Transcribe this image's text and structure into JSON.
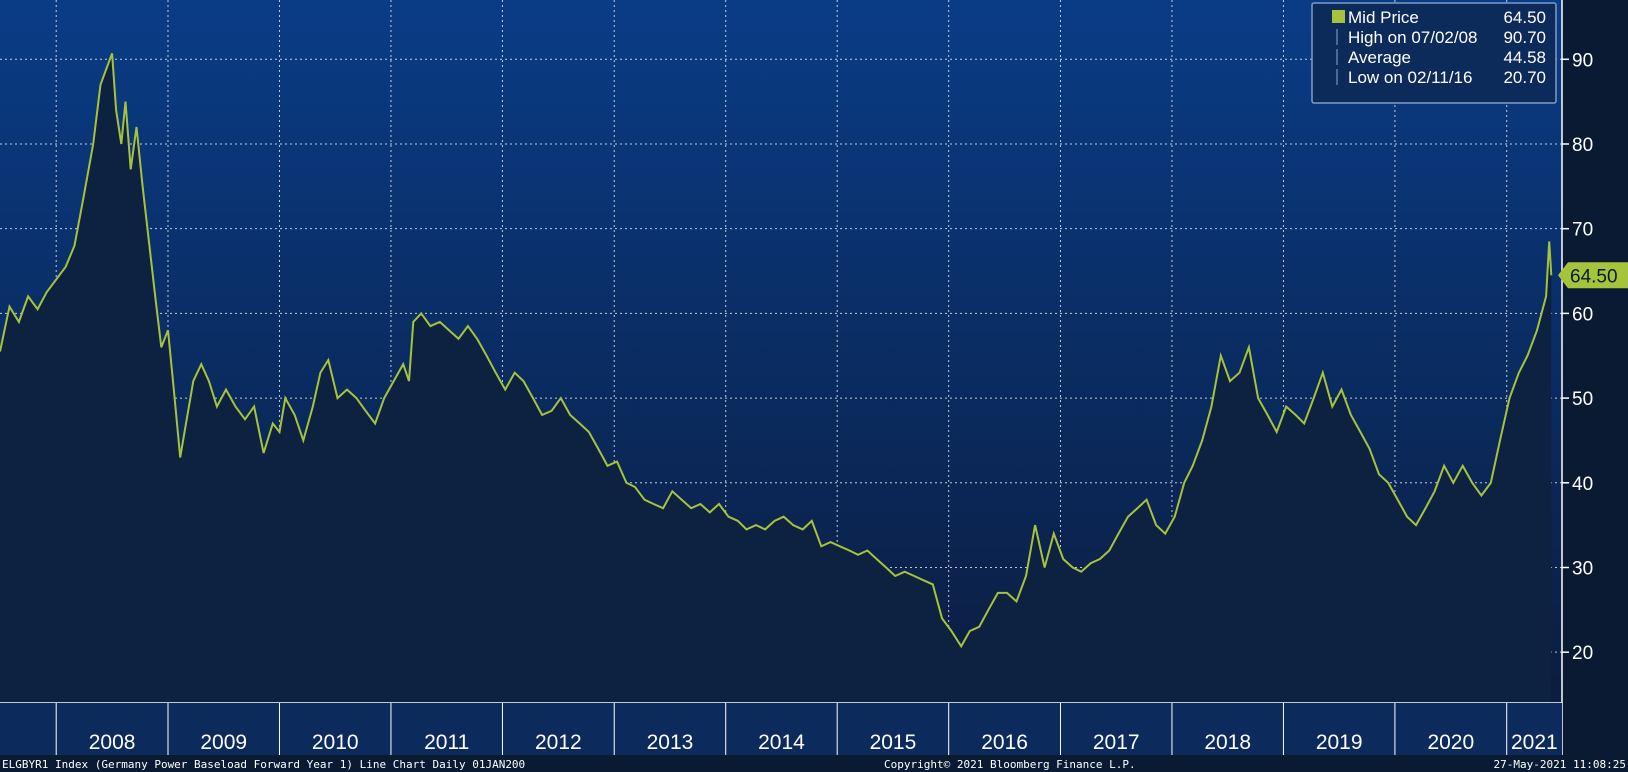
{
  "chart_data": {
    "type": "area",
    "series": [
      {
        "name": "Mid Price",
        "points": [
          [
            "2007-07-01",
            55.5
          ],
          [
            "2007-08-01",
            60.8
          ],
          [
            "2007-09-01",
            59.0
          ],
          [
            "2007-10-01",
            62.0
          ],
          [
            "2007-11-01",
            60.5
          ],
          [
            "2007-12-01",
            62.5
          ],
          [
            "2008-01-01",
            64.0
          ],
          [
            "2008-02-01",
            65.5
          ],
          [
            "2008-03-01",
            68.0
          ],
          [
            "2008-04-01",
            74.0
          ],
          [
            "2008-05-01",
            80.0
          ],
          [
            "2008-05-25",
            87.0
          ],
          [
            "2008-07-02",
            90.7
          ],
          [
            "2008-07-15",
            84.0
          ],
          [
            "2008-08-01",
            80.0
          ],
          [
            "2008-08-15",
            85.0
          ],
          [
            "2008-09-01",
            77.0
          ],
          [
            "2008-09-20",
            82.0
          ],
          [
            "2008-10-10",
            75.0
          ],
          [
            "2008-11-01",
            68.0
          ],
          [
            "2008-11-20",
            62.0
          ],
          [
            "2008-12-10",
            56.0
          ],
          [
            "2009-01-01",
            58.0
          ],
          [
            "2009-01-20",
            51.0
          ],
          [
            "2009-02-10",
            43.0
          ],
          [
            "2009-03-01",
            47.0
          ],
          [
            "2009-03-25",
            52.0
          ],
          [
            "2009-04-20",
            54.0
          ],
          [
            "2009-05-15",
            52.0
          ],
          [
            "2009-06-10",
            49.0
          ],
          [
            "2009-07-10",
            51.0
          ],
          [
            "2009-08-10",
            49.0
          ],
          [
            "2009-09-10",
            47.5
          ],
          [
            "2009-10-10",
            49.0
          ],
          [
            "2009-11-10",
            43.5
          ],
          [
            "2009-12-10",
            47.0
          ],
          [
            "2010-01-01",
            46.0
          ],
          [
            "2010-01-20",
            50.0
          ],
          [
            "2010-02-20",
            48.0
          ],
          [
            "2010-03-20",
            45.0
          ],
          [
            "2010-04-20",
            49.0
          ],
          [
            "2010-05-15",
            53.0
          ],
          [
            "2010-06-10",
            54.5
          ],
          [
            "2010-07-10",
            50.0
          ],
          [
            "2010-08-10",
            51.0
          ],
          [
            "2010-09-10",
            50.0
          ],
          [
            "2010-10-10",
            48.5
          ],
          [
            "2010-11-10",
            47.0
          ],
          [
            "2010-12-10",
            50.0
          ],
          [
            "2011-01-10",
            52.0
          ],
          [
            "2011-02-10",
            54.0
          ],
          [
            "2011-03-01",
            52.0
          ],
          [
            "2011-03-15",
            59.0
          ],
          [
            "2011-04-10",
            60.0
          ],
          [
            "2011-05-10",
            58.5
          ],
          [
            "2011-06-10",
            59.0
          ],
          [
            "2011-07-10",
            58.0
          ],
          [
            "2011-08-10",
            57.0
          ],
          [
            "2011-09-10",
            58.5
          ],
          [
            "2011-10-10",
            57.0
          ],
          [
            "2011-11-10",
            55.0
          ],
          [
            "2011-12-10",
            53.0
          ],
          [
            "2012-01-10",
            51.0
          ],
          [
            "2012-02-10",
            53.0
          ],
          [
            "2012-03-10",
            52.0
          ],
          [
            "2012-04-10",
            50.0
          ],
          [
            "2012-05-10",
            48.0
          ],
          [
            "2012-06-10",
            48.5
          ],
          [
            "2012-07-10",
            50.0
          ],
          [
            "2012-08-10",
            48.0
          ],
          [
            "2012-09-10",
            47.0
          ],
          [
            "2012-10-10",
            46.0
          ],
          [
            "2012-11-10",
            44.0
          ],
          [
            "2012-12-10",
            42.0
          ],
          [
            "2013-01-10",
            42.5
          ],
          [
            "2013-02-10",
            40.0
          ],
          [
            "2013-03-10",
            39.5
          ],
          [
            "2013-04-10",
            38.0
          ],
          [
            "2013-05-10",
            37.5
          ],
          [
            "2013-06-10",
            37.0
          ],
          [
            "2013-07-10",
            39.0
          ],
          [
            "2013-08-10",
            38.0
          ],
          [
            "2013-09-10",
            37.0
          ],
          [
            "2013-10-10",
            37.5
          ],
          [
            "2013-11-10",
            36.5
          ],
          [
            "2013-12-10",
            37.5
          ],
          [
            "2014-01-10",
            36.0
          ],
          [
            "2014-02-10",
            35.5
          ],
          [
            "2014-03-10",
            34.5
          ],
          [
            "2014-04-10",
            35.0
          ],
          [
            "2014-05-10",
            34.5
          ],
          [
            "2014-06-10",
            35.5
          ],
          [
            "2014-07-10",
            36.0
          ],
          [
            "2014-08-10",
            35.0
          ],
          [
            "2014-09-10",
            34.5
          ],
          [
            "2014-10-10",
            35.5
          ],
          [
            "2014-11-10",
            32.5
          ],
          [
            "2014-12-10",
            33.0
          ],
          [
            "2015-01-10",
            32.5
          ],
          [
            "2015-02-10",
            32.0
          ],
          [
            "2015-03-10",
            31.5
          ],
          [
            "2015-04-10",
            32.0
          ],
          [
            "2015-05-10",
            31.0
          ],
          [
            "2015-06-10",
            30.0
          ],
          [
            "2015-07-10",
            29.0
          ],
          [
            "2015-08-10",
            29.5
          ],
          [
            "2015-09-10",
            29.0
          ],
          [
            "2015-10-10",
            28.5
          ],
          [
            "2015-11-10",
            28.0
          ],
          [
            "2015-12-10",
            24.0
          ],
          [
            "2016-01-10",
            22.5
          ],
          [
            "2016-02-11",
            20.7
          ],
          [
            "2016-03-10",
            22.5
          ],
          [
            "2016-04-10",
            23.0
          ],
          [
            "2016-05-10",
            25.0
          ],
          [
            "2016-06-10",
            27.0
          ],
          [
            "2016-07-10",
            27.0
          ],
          [
            "2016-08-10",
            26.0
          ],
          [
            "2016-09-10",
            29.0
          ],
          [
            "2016-10-10",
            35.0
          ],
          [
            "2016-11-10",
            30.0
          ],
          [
            "2016-12-10",
            34.0
          ],
          [
            "2017-01-10",
            31.0
          ],
          [
            "2017-02-10",
            30.0
          ],
          [
            "2017-03-10",
            29.5
          ],
          [
            "2017-04-10",
            30.5
          ],
          [
            "2017-05-10",
            31.0
          ],
          [
            "2017-06-10",
            32.0
          ],
          [
            "2017-07-10",
            34.0
          ],
          [
            "2017-08-10",
            36.0
          ],
          [
            "2017-09-10",
            37.0
          ],
          [
            "2017-10-10",
            38.0
          ],
          [
            "2017-11-10",
            35.0
          ],
          [
            "2017-12-10",
            34.0
          ],
          [
            "2018-01-10",
            36.0
          ],
          [
            "2018-02-10",
            40.0
          ],
          [
            "2018-03-10",
            42.0
          ],
          [
            "2018-04-10",
            45.0
          ],
          [
            "2018-05-10",
            49.0
          ],
          [
            "2018-06-10",
            55.0
          ],
          [
            "2018-07-10",
            52.0
          ],
          [
            "2018-08-10",
            53.0
          ],
          [
            "2018-09-10",
            56.0
          ],
          [
            "2018-10-10",
            50.0
          ],
          [
            "2018-11-10",
            48.0
          ],
          [
            "2018-12-10",
            46.0
          ],
          [
            "2019-01-10",
            49.0
          ],
          [
            "2019-02-10",
            48.0
          ],
          [
            "2019-03-10",
            47.0
          ],
          [
            "2019-04-10",
            50.0
          ],
          [
            "2019-05-10",
            53.0
          ],
          [
            "2019-06-10",
            49.0
          ],
          [
            "2019-07-10",
            51.0
          ],
          [
            "2019-08-10",
            48.0
          ],
          [
            "2019-09-10",
            46.0
          ],
          [
            "2019-10-10",
            44.0
          ],
          [
            "2019-11-10",
            41.0
          ],
          [
            "2019-12-10",
            40.0
          ],
          [
            "2020-01-10",
            38.0
          ],
          [
            "2020-02-10",
            36.0
          ],
          [
            "2020-03-10",
            35.0
          ],
          [
            "2020-04-10",
            37.0
          ],
          [
            "2020-05-10",
            39.0
          ],
          [
            "2020-06-10",
            42.0
          ],
          [
            "2020-07-10",
            40.0
          ],
          [
            "2020-08-10",
            42.0
          ],
          [
            "2020-09-10",
            40.0
          ],
          [
            "2020-10-10",
            38.5
          ],
          [
            "2020-11-10",
            40.0
          ],
          [
            "2020-12-10",
            45.0
          ],
          [
            "2021-01-10",
            50.0
          ],
          [
            "2021-02-10",
            53.0
          ],
          [
            "2021-03-10",
            55.0
          ],
          [
            "2021-04-10",
            58.0
          ],
          [
            "2021-05-10",
            62.0
          ],
          [
            "2021-05-20",
            68.5
          ],
          [
            "2021-05-27",
            64.5
          ]
        ]
      }
    ],
    "x_labels": [
      "2008",
      "2009",
      "2010",
      "2011",
      "2012",
      "2013",
      "2014",
      "2015",
      "2016",
      "2017",
      "2018",
      "2019",
      "2020",
      "2021"
    ],
    "y_ticks": [
      20,
      30,
      40,
      50,
      60,
      70,
      80,
      90
    ],
    "ylim": [
      14,
      97
    ],
    "xlim": [
      "2007-07-01",
      "2021-07-01"
    ],
    "grid": true,
    "legend_placement": "top-right",
    "legend": [
      {
        "label": "Mid Price",
        "value": "64.50"
      },
      {
        "label": "High on 07/02/08",
        "value": "90.70"
      },
      {
        "label": "Average",
        "value": "44.58"
      },
      {
        "label": "Low on 02/11/16",
        "value": "20.70"
      }
    ],
    "last_value_label": "64.50",
    "footer_left": "ELGBYR1 Index (Germany Power Baseload Forward Year 1) Line Chart  Daily 01JAN200",
    "footer_center": "Copyright© 2021 Bloomberg Finance L.P.",
    "footer_right": "27-May-2021 11:08:25"
  },
  "colors": {
    "line": "#a6c33c",
    "area_fill": "#0d2140",
    "bg_top": "#0a3c86",
    "bg_bottom": "#0b1d40",
    "grid": "#ffffff",
    "legend_bg": "#0c2a5a",
    "last_label_bg": "#a6c33c"
  }
}
